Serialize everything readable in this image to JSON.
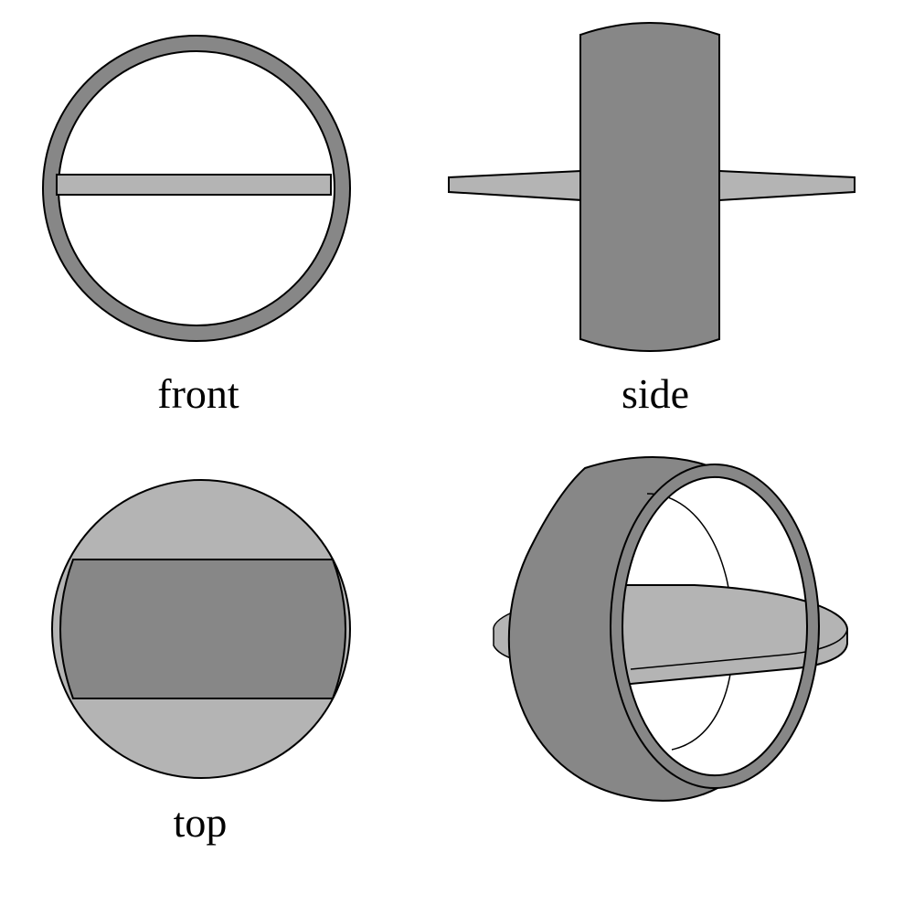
{
  "views": {
    "front": {
      "label": "front"
    },
    "side": {
      "label": "side"
    },
    "top": {
      "label": "top"
    },
    "isometric": {
      "label": ""
    }
  },
  "colors": {
    "background": "#ffffff",
    "ring_dark": "#878787",
    "disc_light": "#b4b4b4",
    "outline": "#000000"
  }
}
